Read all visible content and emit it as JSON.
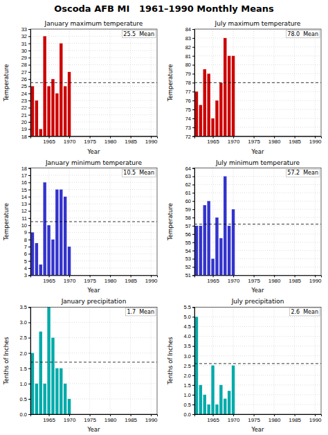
{
  "title": "Oscoda AFB MI   1961–1990 Monthly Means",
  "chart_data": [
    {
      "type": "bar",
      "title": "January maximum temperature",
      "xlabel": "Year",
      "ylabel": "Temperature",
      "color": "#cc0000",
      "grid": true,
      "x": [
        1961,
        1962,
        1963,
        1964,
        1965,
        1966,
        1967,
        1968,
        1969,
        1970
      ],
      "values": [
        25,
        23,
        19,
        32,
        25,
        26,
        24,
        31,
        25,
        27
      ],
      "xlim": [
        1960.5,
        1991.5
      ],
      "xticks": [
        1965,
        1970,
        1975,
        1980,
        1985,
        1990
      ],
      "ylim": [
        18,
        33
      ],
      "yticks": [
        18,
        19,
        20,
        21,
        22,
        23,
        24,
        25,
        26,
        27,
        28,
        29,
        30,
        31,
        32,
        33
      ],
      "reference_line": {
        "value": 25.5,
        "label": "25.5  Mean"
      }
    },
    {
      "type": "bar",
      "title": "July maximum temperature",
      "xlabel": "Year",
      "ylabel": "Temperature",
      "color": "#cc0000",
      "grid": true,
      "x": [
        1961,
        1962,
        1963,
        1964,
        1965,
        1966,
        1967,
        1968,
        1969,
        1970
      ],
      "values": [
        77,
        75.5,
        79.5,
        79,
        74,
        76,
        78,
        83,
        81,
        81
      ],
      "xlim": [
        1960.5,
        1991.5
      ],
      "xticks": [
        1965,
        1970,
        1975,
        1980,
        1985,
        1990
      ],
      "ylim": [
        72,
        84
      ],
      "yticks": [
        72,
        73,
        74,
        75,
        76,
        77,
        78,
        79,
        80,
        81,
        82,
        83,
        84
      ],
      "reference_line": {
        "value": 78.0,
        "label": "78.0  Mean"
      }
    },
    {
      "type": "bar",
      "title": "January minimum temperature",
      "xlabel": "Year",
      "ylabel": "Temperature",
      "color": "#3333cc",
      "grid": true,
      "x": [
        1961,
        1962,
        1963,
        1964,
        1965,
        1966,
        1967,
        1968,
        1969,
        1970
      ],
      "values": [
        9,
        7.5,
        4.5,
        16,
        10,
        8,
        15,
        15,
        14,
        7
      ],
      "xlim": [
        1960.5,
        1991.5
      ],
      "xticks": [
        1965,
        1970,
        1975,
        1980,
        1985,
        1990
      ],
      "ylim": [
        3,
        18
      ],
      "yticks": [
        3,
        4,
        5,
        6,
        7,
        8,
        9,
        10,
        11,
        12,
        13,
        14,
        15,
        16,
        17,
        18
      ],
      "reference_line": {
        "value": 10.5,
        "label": "10.5  Mean"
      }
    },
    {
      "type": "bar",
      "title": "July minimum temperature",
      "xlabel": "Year",
      "ylabel": "Temperature",
      "color": "#3333cc",
      "grid": true,
      "x": [
        1961,
        1962,
        1963,
        1964,
        1965,
        1966,
        1967,
        1968,
        1969,
        1970
      ],
      "values": [
        57,
        57,
        59.5,
        60,
        53,
        58,
        55.5,
        63,
        57,
        59
      ],
      "xlim": [
        1960.5,
        1991.5
      ],
      "xticks": [
        1965,
        1970,
        1975,
        1980,
        1985,
        1990
      ],
      "ylim": [
        51,
        64
      ],
      "yticks": [
        51,
        52,
        53,
        54,
        55,
        56,
        57,
        58,
        59,
        60,
        61,
        62,
        63,
        64
      ],
      "reference_line": {
        "value": 57.2,
        "label": "57.2  Mean"
      }
    },
    {
      "type": "bar",
      "title": "January precipitation",
      "xlabel": "Year",
      "ylabel": "Tenths of Inches",
      "color": "#00aaaa",
      "grid": true,
      "x": [
        1961,
        1962,
        1963,
        1964,
        1965,
        1966,
        1967,
        1968,
        1969,
        1970
      ],
      "values": [
        2.0,
        1.0,
        2.7,
        1.0,
        3.5,
        2.5,
        1.5,
        1.5,
        1.0,
        0.5
      ],
      "xlim": [
        1960.5,
        1991.5
      ],
      "xticks": [
        1965,
        1970,
        1975,
        1980,
        1985,
        1990
      ],
      "ylim": [
        0,
        3.5
      ],
      "yticks": [
        {
          "value": 0,
          "label": "0.0"
        },
        0.5,
        {
          "value": 1,
          "label": "1.0"
        },
        1.5,
        {
          "value": 2,
          "label": "2.0"
        },
        2.5,
        {
          "value": 3,
          "label": "3.0"
        },
        3.5
      ],
      "reference_line": {
        "value": 1.7,
        "label": "1.7  Mean"
      }
    },
    {
      "type": "bar",
      "title": "July precipitation",
      "xlabel": "Year",
      "ylabel": "Tenths of Inches",
      "color": "#00aaaa",
      "grid": true,
      "x": [
        1961,
        1962,
        1963,
        1964,
        1965,
        1966,
        1967,
        1968,
        1969,
        1970
      ],
      "values": [
        5.0,
        1.5,
        1.0,
        0.5,
        2.5,
        0.5,
        1.5,
        0.8,
        1.2,
        2.5
      ],
      "xlim": [
        1960.5,
        1991.5
      ],
      "xticks": [
        1965,
        1970,
        1975,
        1980,
        1985,
        1990
      ],
      "ylim": [
        0,
        5.5
      ],
      "yticks": [
        {
          "value": 0,
          "label": "0.0"
        },
        0.5,
        {
          "value": 1,
          "label": "1.0"
        },
        1.5,
        {
          "value": 2,
          "label": "2.0"
        },
        2.5,
        {
          "value": 3,
          "label": "3.0"
        },
        3.5,
        {
          "value": 4,
          "label": "4.0"
        },
        4.5,
        {
          "value": 5,
          "label": "5.0"
        },
        5.5
      ],
      "reference_line": {
        "value": 2.6,
        "label": "2.6  Mean"
      }
    }
  ]
}
